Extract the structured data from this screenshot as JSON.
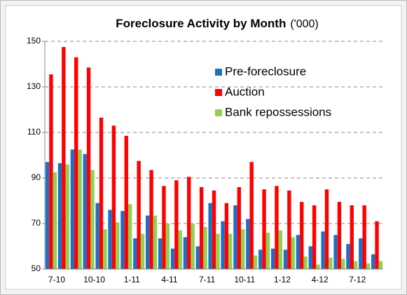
{
  "chart_data": {
    "type": "bar",
    "title": "Foreclosure Activity by Month",
    "unit_note": "('000)",
    "categories": [
      "7-10",
      null,
      null,
      "10-10",
      null,
      null,
      "1-11",
      null,
      null,
      "4-11",
      null,
      null,
      "7-11",
      null,
      null,
      "10-11",
      null,
      null,
      "1-12",
      null,
      null,
      "4-12",
      null,
      null,
      "7-12",
      null,
      null
    ],
    "series": [
      {
        "name": "Pre-foreclosure",
        "color": "#1f6fc5",
        "values": [
          97,
          96.5,
          102.5,
          100.5,
          79,
          76,
          75.5,
          63.5,
          73.5,
          63.5,
          59,
          64,
          60,
          79,
          71,
          78,
          72,
          58.5,
          59,
          58.5,
          65,
          60,
          66.5,
          65,
          61,
          63.5,
          56.5
        ]
      },
      {
        "name": "Auction",
        "color": "#ff0000",
        "values": [
          135.5,
          147.5,
          143,
          138.5,
          116.5,
          113,
          108.5,
          97.5,
          93.5,
          86.5,
          89,
          90.5,
          86,
          84.5,
          79,
          86,
          97,
          85,
          86.5,
          84.5,
          79.5,
          78,
          85,
          79.5,
          78,
          78,
          71
        ]
      },
      {
        "name": "Bank repossessions",
        "color": "#92d050",
        "values": [
          92.5,
          96,
          102.5,
          93.5,
          67.5,
          70.5,
          78.5,
          65.5,
          73.5,
          70,
          67,
          70,
          68.5,
          65.5,
          65.5,
          67.5,
          56,
          66,
          67,
          64,
          55.5,
          52,
          55,
          54.5,
          53.5,
          52.5,
          53.5
        ]
      }
    ],
    "ylim": [
      50,
      150
    ],
    "yticks": [
      50,
      70,
      90,
      110,
      130,
      150
    ],
    "grid": true,
    "legend": "upper right"
  }
}
